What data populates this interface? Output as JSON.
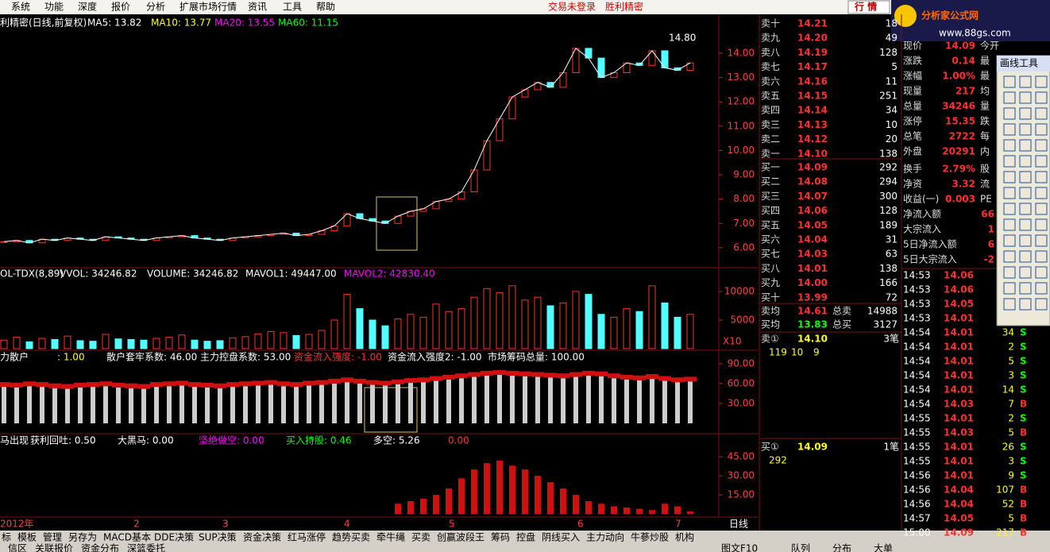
{
  "menu": {
    "items": [
      "系统",
      "功能",
      "深度",
      "报价",
      "分析",
      "扩展市场行情",
      "资讯",
      "工具",
      "帮助"
    ],
    "status": [
      "交易未登录",
      "胜利精密"
    ],
    "mode_button": "行 情"
  },
  "logo": {
    "title": "分析家公式网",
    "url": "www.88gs.com"
  },
  "price_panel": {
    "title": "利精密(日线,前复权)",
    "indicators": [
      {
        "label": "MA5: 13.82",
        "color": "#ffffff"
      },
      {
        "label": "MA10: 13.77",
        "color": "#ffff00"
      },
      {
        "label": "MA20: 13.55",
        "color": "#ff00ff"
      },
      {
        "label": "MA60: 11.15",
        "color": "#00ff00"
      }
    ],
    "high_label": "14.80",
    "ylim": [
      5.18,
      15.47
    ],
    "yticks": [
      {
        "value": 6,
        "label": "6.00"
      },
      {
        "value": 7,
        "label": "7.00"
      },
      {
        "value": 8,
        "label": "8.00"
      },
      {
        "value": 9,
        "label": "9.00"
      },
      {
        "value": 10,
        "label": "10.00"
      },
      {
        "value": 11,
        "label": "11.00"
      },
      {
        "value": 12,
        "label": "12.00"
      },
      {
        "value": 13,
        "label": "13.00"
      },
      {
        "value": 14,
        "label": "14.00"
      }
    ],
    "closes": [
      6.25,
      6.3,
      6.2,
      6.35,
      6.3,
      6.4,
      6.35,
      6.3,
      6.45,
      6.4,
      6.35,
      6.3,
      6.4,
      6.45,
      6.5,
      6.4,
      6.35,
      6.3,
      6.4,
      6.45,
      6.5,
      6.55,
      6.6,
      6.5,
      6.55,
      6.7,
      6.9,
      7.4,
      7.2,
      7.1,
      7.0,
      7.3,
      7.5,
      7.6,
      7.9,
      8.0,
      8.3,
      9.2,
      10.4,
      11.3,
      12.2,
      12.5,
      12.8,
      12.6,
      13.2,
      14.2,
      13.8,
      13.0,
      13.2,
      13.6,
      13.5,
      14.1,
      13.4,
      13.3,
      13.6
    ]
  },
  "volume_panel": {
    "title": "OL-TDX(8,89)",
    "indicators": [
      {
        "label": "VVOL: 34246.82",
        "color": "#ffffff"
      },
      {
        "label": "VOLUME: 34246.82",
        "color": "#ffffff"
      },
      {
        "label": "MAVOL1: 49447.00",
        "color": "#ffffff"
      },
      {
        "label": "MAVOL2: 42830.40",
        "color": "#ff00ff"
      }
    ],
    "scale_label": "X10",
    "ylim": [
      0,
      13750
    ],
    "yticks": [
      5000,
      10000
    ],
    "values": [
      1500,
      2000,
      1200,
      1800,
      1600,
      2200,
      1400,
      1300,
      2500,
      1700,
      1600,
      1500,
      1800,
      2000,
      2400,
      1500,
      1300,
      1400,
      1900,
      2100,
      2600,
      3000,
      2800,
      2300,
      2500,
      3200,
      5000,
      9500,
      7000,
      5000,
      4000,
      5200,
      6000,
      5500,
      7800,
      6500,
      7000,
      9000,
      10500,
      9800,
      11000,
      8500,
      9000,
      7500,
      8000,
      10000,
      9500,
      6000,
      5500,
      7000,
      6500,
      11000,
      8000,
      5500,
      6000
    ]
  },
  "flow_panel": {
    "title": "力散户",
    "indicators": [
      {
        "label": ": 1.00",
        "color": "#ffff00"
      },
      {
        "label": "散户套牢系数: 46.00",
        "color": "#ffffff"
      },
      {
        "label": "主力控盘系数: 53.00",
        "color": "#ffffff"
      },
      {
        "label": "资金流入强度: -1.00",
        "color": "#ff3030"
      },
      {
        "label": "资金流入强度2: -1.00",
        "color": "#ffffff"
      },
      {
        "label": "市场筹码总量: 100.00",
        "color": "#ffffff"
      }
    ],
    "ylim": [
      0,
      103
    ],
    "yticks": [
      {
        "value": 30,
        "label": "30.00"
      },
      {
        "value": 60,
        "label": "60.00"
      },
      {
        "value": 90,
        "label": "90.00"
      }
    ],
    "values": [
      55,
      54,
      56,
      55,
      53,
      52,
      54,
      55,
      56,
      54,
      53,
      52,
      55,
      56,
      57,
      55,
      54,
      53,
      55,
      56,
      57,
      58,
      56,
      55,
      57,
      58,
      60,
      62,
      60,
      58,
      57,
      59,
      61,
      62,
      64,
      66,
      68,
      70,
      72,
      73,
      72,
      71,
      70,
      69,
      68,
      70,
      72,
      71,
      68,
      66,
      65,
      67,
      64,
      62,
      63
    ]
  },
  "horse_panel": {
    "title": "马出现",
    "indicators": [
      {
        "label": "获利回吐: 0.50",
        "color": "#ffffff"
      },
      {
        "label": "大黑马: 0.00",
        "color": "#ffffff"
      },
      {
        "label": "坚绝做空: 0.00",
        "color": "#ff00ff"
      },
      {
        "label": "买入持股: 0.46",
        "color": "#00ff00"
      },
      {
        "label": "多空: 5.26",
        "color": "#ffffff"
      },
      {
        "label": "0.00",
        "color": "#ff3030"
      }
    ],
    "ylim": [
      0,
      62
    ],
    "yticks": [
      {
        "value": 15,
        "label": "15.00"
      },
      {
        "value": 30,
        "label": "30.00"
      },
      {
        "value": 45,
        "label": "45.00"
      }
    ],
    "values": [
      0,
      0,
      0,
      0,
      0,
      0,
      0,
      0,
      0,
      0,
      0,
      0,
      0,
      0,
      0,
      0,
      0,
      0,
      0,
      0,
      0,
      0,
      0,
      0,
      0,
      0,
      0,
      0,
      0,
      0,
      0,
      8,
      10,
      12,
      15,
      20,
      28,
      35,
      40,
      42,
      38,
      35,
      30,
      25,
      20,
      15,
      10,
      8,
      6,
      5,
      4,
      3,
      8,
      6,
      2
    ]
  },
  "x_axis": {
    "labels": [
      "2012年",
      "2",
      "3",
      "4",
      "5",
      "6",
      "7"
    ],
    "period": "日线"
  },
  "order_book": {
    "asks": [
      [
        "卖十",
        "14.21",
        "18"
      ],
      [
        "卖九",
        "14.20",
        "49"
      ],
      [
        "卖八",
        "14.19",
        "128"
      ],
      [
        "卖七",
        "14.17",
        "5"
      ],
      [
        "卖六",
        "14.16",
        "11"
      ],
      [
        "卖五",
        "14.15",
        "251"
      ],
      [
        "卖四",
        "14.14",
        "34"
      ],
      [
        "卖三",
        "14.13",
        "10"
      ],
      [
        "卖二",
        "14.12",
        "20"
      ],
      [
        "卖一",
        "14.10",
        "138"
      ]
    ],
    "bids": [
      [
        "买一",
        "14.09",
        "292"
      ],
      [
        "买二",
        "14.08",
        "294"
      ],
      [
        "买三",
        "14.07",
        "300"
      ],
      [
        "买四",
        "14.06",
        "128"
      ],
      [
        "买五",
        "14.05",
        "189"
      ],
      [
        "买六",
        "14.04",
        "31"
      ],
      [
        "买七",
        "14.03",
        "63"
      ],
      [
        "买八",
        "14.01",
        "138"
      ],
      [
        "买九",
        "14.00",
        "166"
      ],
      [
        "买十",
        "13.99",
        "72"
      ]
    ],
    "summary": [
      [
        "卖均",
        "14.61",
        "总卖",
        "14988"
      ],
      [
        "买均",
        "13.83",
        "总买",
        "3127"
      ]
    ],
    "best_ask": {
      "label": "卖①",
      "price": "14.10",
      "count": "3笔",
      "queue": [
        "119",
        "10",
        "9"
      ]
    },
    "best_bid": {
      "label": "买①",
      "price": "14.09",
      "count": "1笔",
      "queue": [
        "292"
      ]
    }
  },
  "quote": {
    "rows": [
      [
        "现价",
        "14.09",
        "今开"
      ],
      [
        "涨跌",
        "0.14",
        "最"
      ],
      [
        "涨幅",
        "1.00%",
        "最"
      ],
      [
        "现量",
        "217",
        "均"
      ],
      [
        "总量",
        "34246",
        "量"
      ],
      [
        "涨停",
        "15.35",
        "跌"
      ],
      [
        "总笔",
        "2722",
        "每"
      ],
      [
        "外盘",
        "20291",
        "内"
      ],
      [
        "换手",
        "2.79%",
        "股"
      ],
      [
        "净资",
        "3.32",
        "流"
      ],
      [
        "收益(一)",
        "0.003",
        "PE"
      ],
      [
        "净流入额",
        "66"
      ],
      [
        "大宗流入",
        "1"
      ],
      [
        "5日净流入额",
        "6"
      ],
      [
        "5日大宗流入",
        "-2"
      ]
    ]
  },
  "ticks": [
    [
      "14:53",
      "14.06"
    ],
    [
      "14:53",
      "14.06"
    ],
    [
      "14:53",
      "14.05"
    ],
    [
      "14:53",
      "14.01"
    ],
    [
      "14:54",
      "14.01",
      "34",
      "S"
    ],
    [
      "14:54",
      "14.01",
      "2",
      "S"
    ],
    [
      "14:54",
      "14.01",
      "5",
      "S"
    ],
    [
      "14:54",
      "14.01",
      "3",
      "S"
    ],
    [
      "14:54",
      "14.01",
      "14",
      "S"
    ],
    [
      "14:54",
      "14.03",
      "7",
      "B"
    ],
    [
      "14:55",
      "14.01",
      "2",
      "S"
    ],
    [
      "14:55",
      "14.03",
      "5",
      "B"
    ],
    [
      "14:55",
      "14.01",
      "26",
      "S"
    ],
    [
      "14:55",
      "14.01",
      "3",
      "S"
    ],
    [
      "14:56",
      "14.01",
      "9",
      "S"
    ],
    [
      "14:56",
      "14.04",
      "107",
      "B"
    ],
    [
      "14:56",
      "14.04",
      "52",
      "B"
    ],
    [
      "14:57",
      "14.05",
      "5",
      "B"
    ],
    [
      "15:00",
      "14.09",
      "217",
      "B"
    ]
  ],
  "toolbar": {
    "title": "画线工具"
  },
  "tabs": {
    "items": [
      "标",
      "模板",
      "管理",
      "另存为",
      "MACD基本",
      "DDE决策",
      "SUP决策",
      "资金决策",
      "红马涨停",
      "趋势买卖",
      "牵牛绳",
      "买卖",
      "创赢波段王",
      "筹码",
      "控盘",
      "阴线买入",
      "主力动向",
      "牛蔘炒股",
      "机构"
    ],
    "bottom": [
      "信区",
      "关联报价",
      "资金分布",
      "深篮委托"
    ],
    "right": [
      "图文F10",
      "队列",
      "分布",
      "大单"
    ]
  }
}
